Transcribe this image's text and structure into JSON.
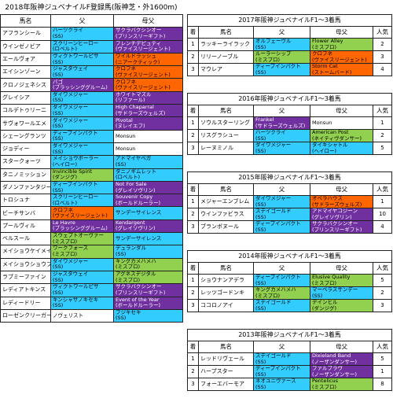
{
  "title": "2018年阪神ジュベナイルF登録馬(阪神芝・外1600m)",
  "left_headers": {
    "horse": "馬名",
    "sire": "父",
    "dam_sire": "母父"
  },
  "entries": [
    {
      "horse": "アフランシール",
      "sire": "ハーツクライ",
      "sire_line": "(SS)",
      "sire_color": "cyan",
      "dam_sire": "サクラバクシンオー",
      "dam_sire_line": "(プリンスリーギフト)",
      "dam_color": "purple"
    },
    {
      "horse": "ウインゼノビア",
      "sire": "スクリーンヒーロー",
      "sire_line": "(ロベルト)",
      "sire_color": "cyan",
      "dam_sire": "フレンチデピュティ",
      "dam_sire_line": "(ヴァイスリージェント)",
      "dam_color": "purple"
    },
    {
      "horse": "エールヴォア",
      "sire": "ヴィクトワールピサ",
      "sire_line": "(SS)",
      "sire_color": "cyan",
      "dam_sire": "ワイルドラッシュ",
      "dam_sire_line": "(ニアークティック)",
      "dam_color": "orange"
    },
    {
      "horse": "エイシンゾーン",
      "sire": "ジャスタウェイ",
      "sire_line": "(SS)",
      "sire_color": "cyan",
      "dam_sire": "クロフネ",
      "dam_sire_line": "(ヴァイスリージェント)",
      "dam_color": "orange"
    },
    {
      "horse": "クロノジェネシス",
      "sire": "バゴ",
      "sire_line": "(ブラッシンググルーム)",
      "sire_color": "purple",
      "dam_sire": "クロフネ",
      "dam_sire_line": "(ヴァイスリージェント)",
      "dam_color": "orange"
    },
    {
      "horse": "グレイシア",
      "sire": "ダイワメジャー",
      "sire_line": "(SS)",
      "sire_color": "cyan",
      "dam_sire": "ホワイトマズル",
      "dam_sire_line": "(リファール)",
      "dam_color": "purple"
    },
    {
      "horse": "コルデトゥリーニ",
      "sire": "ダイワメジャー",
      "sire_line": "(SS)",
      "sire_color": "cyan",
      "dam_sire": "High Chaparral",
      "dam_sire_line": "(サドラーズウェルズ)",
      "dam_color": "purple"
    },
    {
      "horse": "サヴォワールエメ",
      "sire": "ダイワメジャー",
      "sire_line": "(SS)",
      "sire_color": "cyan",
      "dam_sire": "Pivotal",
      "dam_sire_line": "(ヌレイエフ)",
      "dam_color": "purple"
    },
    {
      "horse": "シェーングランツ",
      "sire": "ディープインパクト",
      "sire_line": "(SS)",
      "sire_color": "cyan",
      "dam_sire": "Monsun",
      "dam_sire_line": "",
      "dam_color": "white"
    },
    {
      "horse": "ジョディー",
      "sire": "ダイワメジャー",
      "sire_line": "(SS)",
      "sire_color": "cyan",
      "dam_sire": "Monsun",
      "dam_sire_line": "",
      "dam_color": "white"
    },
    {
      "horse": "スタークォーツ",
      "sire": "メイショウボーラー",
      "sire_line": "(ヘイロー)",
      "sire_color": "cyan",
      "dam_sire": "アドマイヤベガ",
      "dam_sire_line": "(SS)",
      "dam_color": "cyan"
    },
    {
      "horse": "タニノミッション",
      "sire": "Invincible Spirit",
      "sire_line": "(ダンジグ)",
      "sire_color": "green",
      "dam_sire": "タニノギムレット",
      "dam_sire_line": "(ロベルト)",
      "dam_color": "cyan"
    },
    {
      "horse": "ダノンファンタジー",
      "sire": "ディープインパクト",
      "sire_line": "(SS)",
      "sire_color": "cyan",
      "dam_sire": "Not For Sale",
      "dam_sire_line": "(グレイソヴリン)",
      "dam_color": "purple"
    },
    {
      "horse": "トロシュナ",
      "sire": "スクリーンヒーロー",
      "sire_line": "(ロベルト)",
      "sire_color": "cyan",
      "dam_sire": "Souvenir Copy",
      "dam_sire_line": "(ボールドルーラー)",
      "dam_color": "purple"
    },
    {
      "horse": "ビーチサンバ",
      "sire": "クロフネ",
      "sire_line": "(ヴァイスリージェント)",
      "sire_color": "orange",
      "dam_sire": "サンデーサイレンス",
      "dam_sire_line": "",
      "dam_color": "cyan"
    },
    {
      "horse": "プールヴィル",
      "sire": "Le Havre",
      "sire_line": "(ブラッシンググルーム)",
      "sire_color": "purple",
      "dam_sire": "Kendargent",
      "dam_sire_line": "(グレイソヴリン)",
      "dam_color": "purple"
    },
    {
      "horse": "ベルスール",
      "sire": "スウェプトオーヴァー",
      "sire_line": "(ミスプロ)",
      "sire_color": "green",
      "dam_sire": "サンデーサイレンス",
      "dam_sire_line": "",
      "dam_color": "cyan"
    },
    {
      "horse": "メイショウケイメイ",
      "sire": "ワークフォース",
      "sire_line": "(ミスプロ)",
      "sire_color": "green",
      "dam_sire": "デュランダル",
      "dam_sire_line": "(SS)",
      "dam_color": "cyan"
    },
    {
      "horse": "メイショウショウブ",
      "sire": "ダイワメジャー",
      "sire_line": "(SS)",
      "sire_color": "cyan",
      "dam_sire": "キングカメハメハ",
      "dam_sire_line": "(ミスプロ)",
      "dam_color": "green"
    },
    {
      "horse": "ラブミーファイン",
      "sire": "ジャスタウェイ",
      "sire_line": "(SS)",
      "sire_color": "cyan",
      "dam_sire": "アグネスデジタル",
      "dam_sire_line": "(ミスプロ)",
      "dam_color": "green"
    },
    {
      "horse": "レディアトキンス",
      "sire": "ヴィクトワールピサ",
      "sire_line": "(SS)",
      "sire_color": "cyan",
      "dam_sire": "サクラバクシンオー",
      "dam_sire_line": "(プリンスリーギフト)",
      "dam_color": "purple"
    },
    {
      "horse": "レディードリー",
      "sire": "キンシャサノキセキ",
      "sire_line": "(SS)",
      "sire_color": "cyan",
      "dam_sire": "Event of the Year",
      "dam_sire_line": "(ボールドルーラー)",
      "dam_color": "purple"
    },
    {
      "horse": "ローゼンクリーガー",
      "sire": "ノヴェリスト",
      "sire_line": "",
      "sire_color": "white",
      "dam_sire": "フジキセキ",
      "dam_sire_line": "(SS)",
      "dam_color": "cyan"
    }
  ],
  "right_headers": {
    "rank": "着",
    "horse": "馬名",
    "sire": "父",
    "dam_sire": "母父",
    "pop": "人気"
  },
  "years": [
    {
      "title": "2017年阪神ジュベナイルF1～3着馬",
      "rows": [
        {
          "rank": "1",
          "horse": "ラッキーライラック",
          "sire": "オルフェーヴル",
          "sire_line": "(SS)",
          "sire_color": "cyan",
          "dam_sire": "Flower Alley",
          "dam_sire_line": "(ミスプロ)",
          "dam_color": "green",
          "pop": "2"
        },
        {
          "rank": "2",
          "horse": "リリーノーブル",
          "sire": "ルーラーシップ",
          "sire_line": "(ミスプロ)",
          "sire_color": "green",
          "dam_sire": "クロフネ",
          "dam_sire_line": "(ヴァイスリージェント)",
          "dam_color": "orange",
          "pop": "3"
        },
        {
          "rank": "3",
          "horse": "マウレア",
          "sire": "ディープインパクト",
          "sire_line": "(SS)",
          "sire_color": "cyan",
          "dam_sire": "Storm Cat",
          "dam_sire_line": "(ストームバード)",
          "dam_color": "orange",
          "pop": "4"
        }
      ]
    },
    {
      "title": "2016年阪神ジュベナイルF1～3着馬",
      "rows": [
        {
          "rank": "1",
          "horse": "ソウルスターリング",
          "sire": "Frankel",
          "sire_line": "(サドラーズウェルズ)",
          "sire_color": "purple",
          "dam_sire": "Monsun",
          "dam_sire_line": "",
          "dam_color": "white",
          "pop": "1"
        },
        {
          "rank": "2",
          "horse": "リスグラシュー",
          "sire": "ハーツクライ",
          "sire_line": "(SS)",
          "sire_color": "cyan",
          "dam_sire": "American Post",
          "dam_sire_line": "(ネイティヴダンサー)",
          "dam_color": "green",
          "pop": "2"
        },
        {
          "rank": "3",
          "horse": "レーヌミノル",
          "sire": "ダイワメジャー",
          "sire_line": "(SS)",
          "sire_color": "cyan",
          "dam_sire": "タイキシャトル",
          "dam_sire_line": "(ヘイロー)",
          "dam_color": "cyan",
          "pop": "5"
        }
      ]
    },
    {
      "title": "2015年阪神ジュベナイルF1～3着馬",
      "rows": [
        {
          "rank": "1",
          "horse": "メジャーエンブレム",
          "sire": "ダイワメジャー",
          "sire_line": "(SS)",
          "sire_color": "cyan",
          "dam_sire": "オペラハウス",
          "dam_sire_line": "(サドラーズウェルズ)",
          "dam_color": "orange",
          "pop": "1"
        },
        {
          "rank": "2",
          "horse": "ウインファビラス",
          "sire": "ステイゴールド",
          "sire_line": "(SS)",
          "sire_color": "cyan",
          "dam_sire": "アドマイヤコジーン",
          "dam_sire_line": "(グレイソヴリン)",
          "dam_color": "purple",
          "pop": "10"
        },
        {
          "rank": "3",
          "horse": "ブランボヌール",
          "sire": "ディープインパクト",
          "sire_line": "(SS)",
          "sire_color": "cyan",
          "dam_sire": "サクラバクシンオー",
          "dam_sire_line": "(プリンスリーギフト)",
          "dam_color": "purple",
          "pop": "4"
        }
      ]
    },
    {
      "title": "2014年阪神ジュベナイルF1～3着馬",
      "rows": [
        {
          "rank": "1",
          "horse": "ショウナンアデラ",
          "sire": "ディープインパクト",
          "sire_line": "(SS)",
          "sire_color": "cyan",
          "dam_sire": "Elusive Quality",
          "dam_sire_line": "(ミスプロ)",
          "dam_color": "green",
          "pop": "5"
        },
        {
          "rank": "2",
          "horse": "レッツゴードンキ",
          "sire": "キングカメハメハ",
          "sire_line": "(ミスプロ)",
          "sire_color": "green",
          "dam_sire": "マーベラスサンデー",
          "dam_sire_line": "(SS)",
          "dam_color": "cyan",
          "pop": "2"
        },
        {
          "rank": "3",
          "horse": "ココロノアイ",
          "sire": "ステイゴールド",
          "sire_line": "(SS)",
          "sire_color": "cyan",
          "dam_sire": "デインヒル",
          "dam_sire_line": "(ダンジグ)",
          "dam_color": "green",
          "pop": "3"
        }
      ]
    },
    {
      "title": "2013年阪神ジュベナイルF1～3着馬",
      "rows": [
        {
          "rank": "1",
          "horse": "レッドリヴェール",
          "sire": "ステイゴールド",
          "sire_line": "(SS)",
          "sire_color": "cyan",
          "dam_sire": "Dixieland Band",
          "dam_sire_line": "(ノーザンダンサー)",
          "dam_color": "purple",
          "pop": "5"
        },
        {
          "rank": "2",
          "horse": "ハープスター",
          "sire": "ディープインパクト",
          "sire_line": "(SS)",
          "sire_color": "cyan",
          "dam_sire": "ファルブラヴ",
          "dam_sire_line": "(ノーザンダンサー)",
          "dam_color": "purple",
          "pop": "1"
        },
        {
          "rank": "3",
          "horse": "フォーエバーモア",
          "sire": "ネオユニヴァース",
          "sire_line": "(SS)",
          "sire_color": "cyan",
          "dam_sire": "Pentelicus",
          "dam_sire_line": "(ミスプロ)",
          "dam_color": "green",
          "pop": "8"
        }
      ]
    }
  ]
}
